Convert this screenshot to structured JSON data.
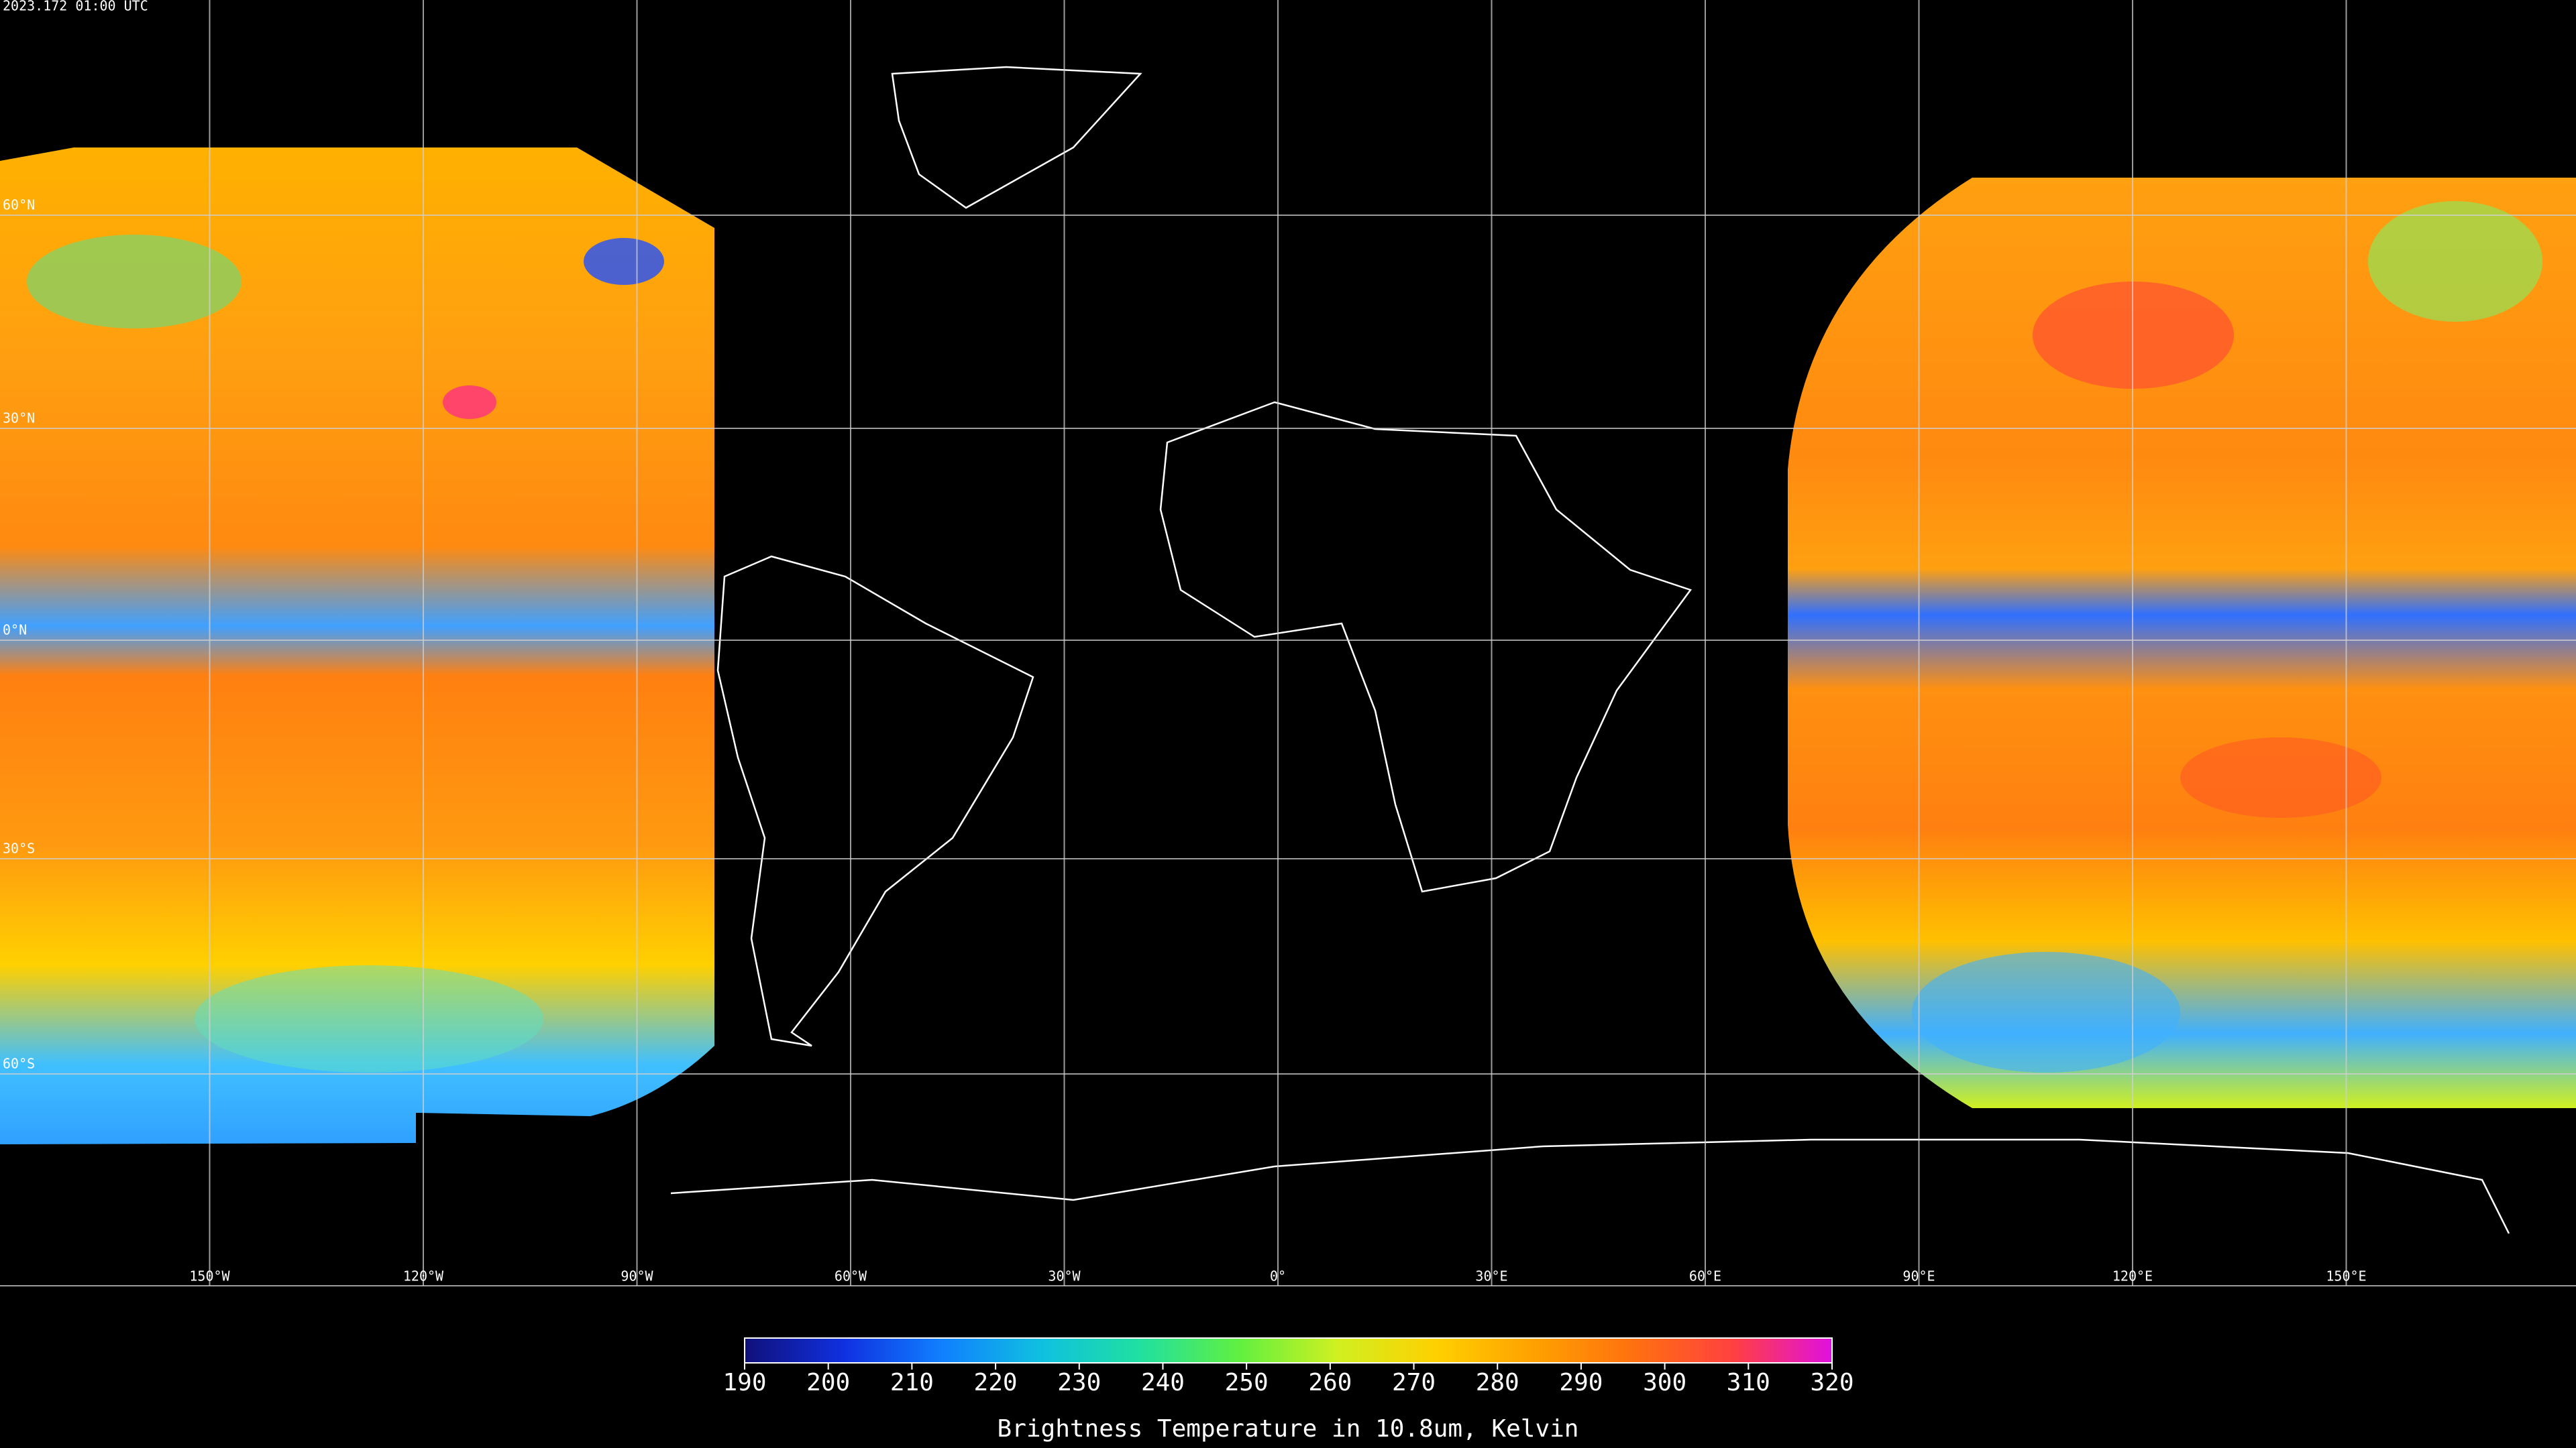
{
  "header": {
    "timestamp": "2023.172 01:00 UTC"
  },
  "map": {
    "lon_labels": [
      "150°W",
      "120°W",
      "90°W",
      "60°W",
      "30°W",
      "0°",
      "30°E",
      "60°E",
      "90°E",
      "120°E",
      "150°E"
    ],
    "lat_labels": [
      "60°N",
      "30°N",
      "0°N",
      "30°S",
      "60°S"
    ]
  },
  "colorbar": {
    "lim": [
      190,
      320
    ],
    "ticks": [
      190,
      200,
      210,
      220,
      230,
      240,
      250,
      260,
      270,
      280,
      290,
      300,
      310,
      320
    ],
    "colors": [
      "#10107a",
      "#1030e0",
      "#1080ff",
      "#10c0e0",
      "#20e0a0",
      "#60f040",
      "#d0f020",
      "#ffd000",
      "#ffa000",
      "#ff7010",
      "#ff4040",
      "#e010e0"
    ],
    "label": "Brightness Temperature in 10.8um, Kelvin"
  }
}
